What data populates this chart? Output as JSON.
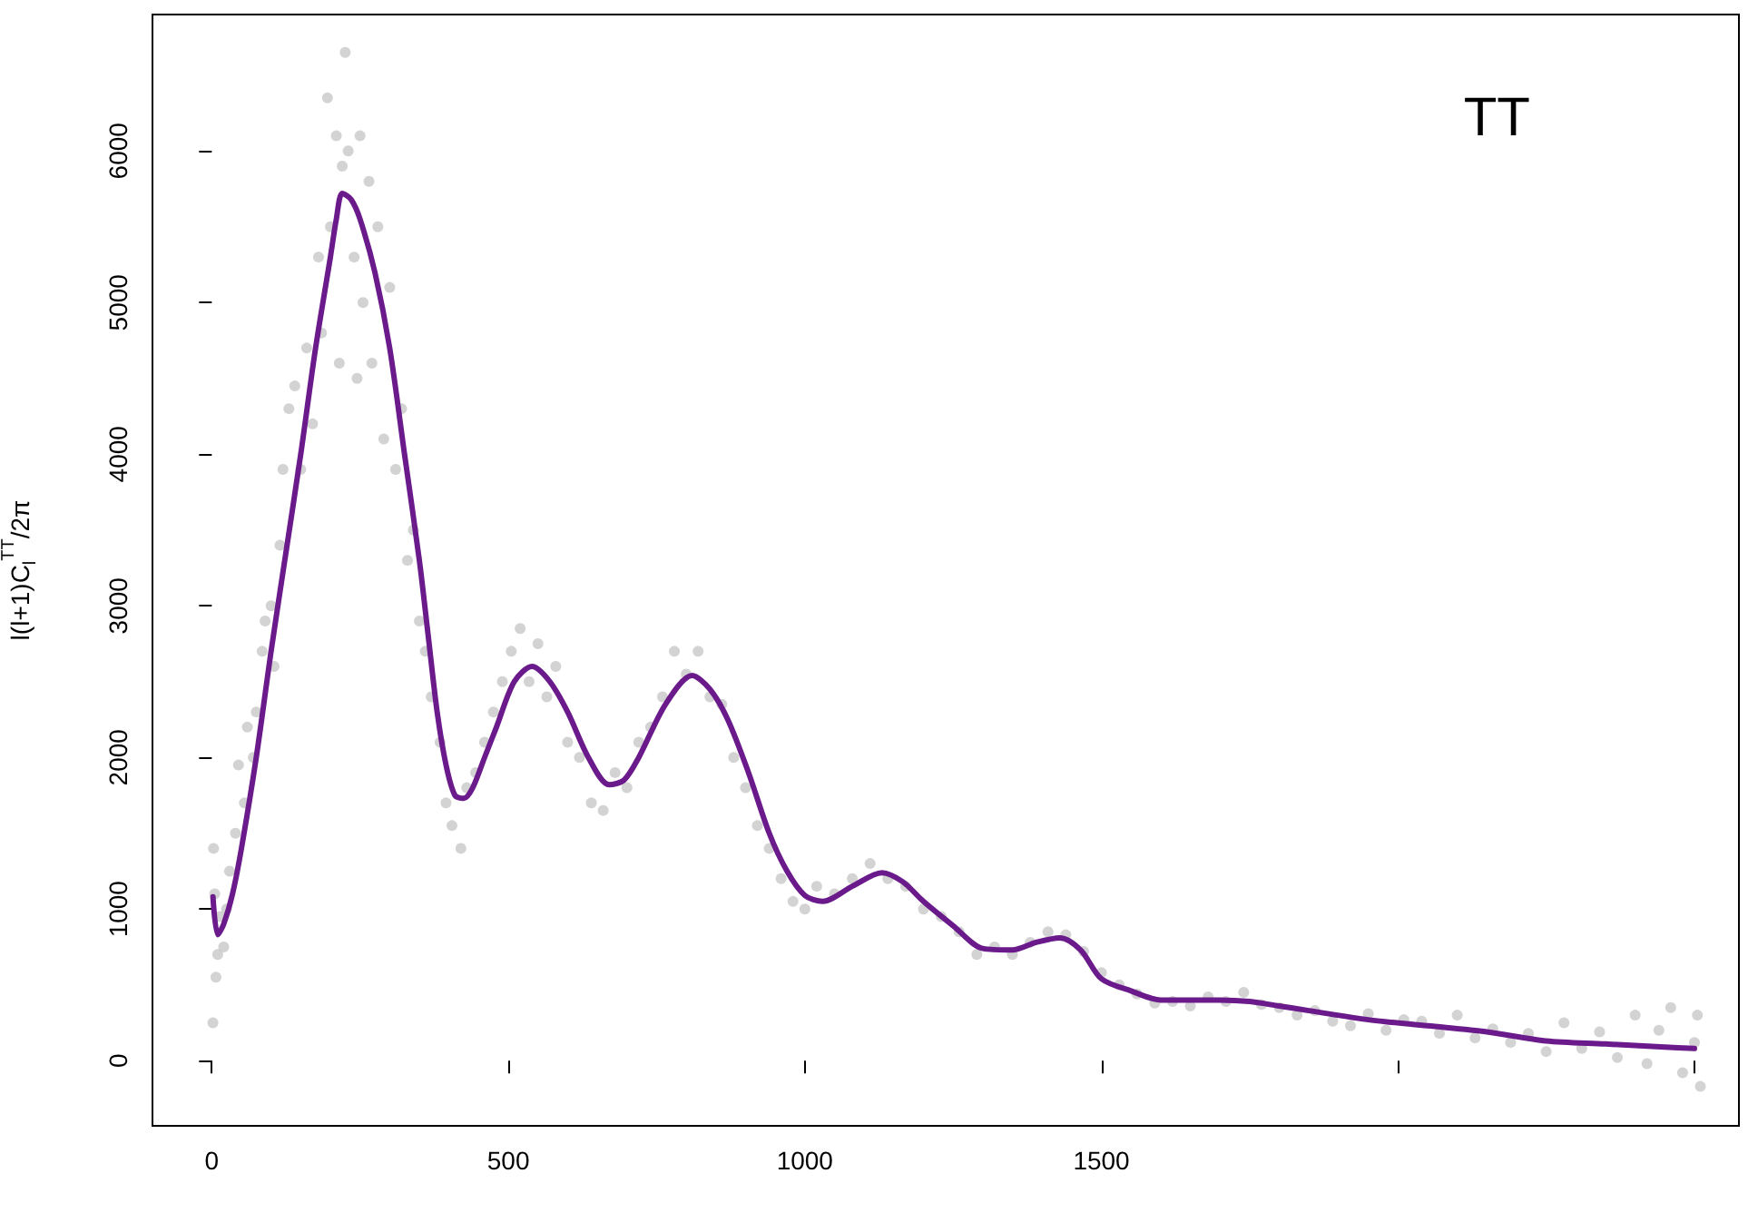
{
  "chart_data": {
    "type": "line",
    "ylabel": "l(l+1)C$_{l}$$^{TT}$/2π",
    "annotations": [
      "TT"
    ],
    "xlim": [
      -100,
      2575
    ],
    "ylim": [
      -430,
      6900
    ],
    "xticks": [
      0,
      500,
      1000,
      1500,
      {
        "value": 2000,
        "label": null
      },
      {
        "value": 2500,
        "label": null
      }
    ],
    "yticks": [
      0,
      1000,
      2000,
      3000,
      4000,
      5000,
      6000
    ],
    "series": [
      {
        "type": "scatter",
        "color": "#c8c8c8",
        "x": [
          2,
          3,
          5,
          7,
          10,
          14,
          20,
          25,
          30,
          40,
          45,
          55,
          60,
          70,
          75,
          85,
          90,
          100,
          105,
          115,
          120,
          130,
          140,
          150,
          160,
          170,
          180,
          185,
          195,
          200,
          210,
          215,
          220,
          225,
          230,
          240,
          245,
          250,
          255,
          265,
          270,
          280,
          290,
          300,
          310,
          320,
          330,
          340,
          350,
          360,
          370,
          385,
          395,
          405,
          420,
          430,
          445,
          460,
          475,
          490,
          505,
          520,
          535,
          550,
          565,
          580,
          600,
          620,
          640,
          660,
          680,
          700,
          720,
          740,
          760,
          780,
          800,
          820,
          840,
          860,
          880,
          900,
          920,
          940,
          960,
          980,
          1000,
          1020,
          1050,
          1080,
          1110,
          1140,
          1170,
          1200,
          1230,
          1260,
          1290,
          1320,
          1350,
          1380,
          1410,
          1440,
          1470,
          1500,
          1530,
          1560,
          1590,
          1620,
          1650,
          1680,
          1710,
          1740,
          1770,
          1800,
          1830,
          1860,
          1890,
          1920,
          1950,
          1980,
          2010,
          2040,
          2070,
          2100,
          2130,
          2160,
          2190,
          2220,
          2250,
          2280,
          2310,
          2340,
          2370,
          2400,
          2420,
          2440,
          2460,
          2480,
          2500,
          2505,
          2510
        ],
        "values": [
          250,
          1400,
          1100,
          550,
          700,
          950,
          750,
          1000,
          1250,
          1500,
          1950,
          1700,
          2200,
          2000,
          2300,
          2700,
          2900,
          3000,
          2600,
          3400,
          3900,
          4300,
          4450,
          3900,
          4700,
          4200,
          5300,
          4800,
          6350,
          5500,
          6100,
          4600,
          5900,
          6650,
          6000,
          5300,
          4500,
          6100,
          5000,
          5800,
          4600,
          5500,
          4100,
          5100,
          3900,
          4300,
          3300,
          3500,
          2900,
          2700,
          2400,
          2100,
          1700,
          1550,
          1400,
          1800,
          1900,
          2100,
          2300,
          2500,
          2700,
          2850,
          2500,
          2750,
          2400,
          2600,
          2100,
          2000,
          1700,
          1650,
          1900,
          1800,
          2100,
          2200,
          2400,
          2700,
          2550,
          2700,
          2400,
          2350,
          2000,
          1800,
          1550,
          1400,
          1200,
          1050,
          1000,
          1150,
          1100,
          1200,
          1300,
          1200,
          1150,
          1000,
          950,
          850,
          700,
          750,
          700,
          780,
          850,
          830,
          720,
          580,
          500,
          440,
          380,
          390,
          360,
          420,
          390,
          450,
          370,
          350,
          300,
          330,
          260,
          230,
          310,
          200,
          270,
          260,
          180,
          300,
          150,
          210,
          120,
          180,
          60,
          250,
          80,
          190,
          20,
          300,
          -20,
          200,
          350,
          -80,
          120,
          300,
          -170
        ]
      },
      {
        "color": "#6a1a8a",
        "x": [
          2,
          10,
          20,
          35,
          50,
          75,
          100,
          125,
          150,
          175,
          200,
          210,
          220,
          235,
          250,
          275,
          300,
          325,
          350,
          365,
          380,
          395,
          410,
          425,
          440,
          460,
          480,
          510,
          540,
          570,
          600,
          635,
          670,
          695,
          720,
          765,
          810,
          840,
          870,
          905,
          940,
          970,
          1000,
          1030,
          1080,
          1130,
          1165,
          1200,
          1250,
          1300,
          1350,
          1390,
          1430,
          1465,
          1500,
          1550,
          1600,
          1650,
          1700,
          1750,
          1800,
          1850,
          1950,
          2050,
          2150,
          2250,
          2350,
          2450,
          2500
        ],
        "values": [
          1080,
          830,
          900,
          1100,
          1400,
          2000,
          2700,
          3350,
          4000,
          4700,
          5300,
          5550,
          5720,
          5680,
          5550,
          5200,
          4700,
          4000,
          3300,
          2800,
          2300,
          1950,
          1750,
          1730,
          1800,
          2000,
          2200,
          2500,
          2600,
          2500,
          2300,
          2000,
          1820,
          1850,
          2000,
          2350,
          2540,
          2450,
          2250,
          1900,
          1500,
          1250,
          1090,
          1050,
          1150,
          1240,
          1180,
          1050,
          890,
          740,
          730,
          780,
          810,
          730,
          540,
          460,
          400,
          400,
          400,
          390,
          360,
          330,
          270,
          230,
          190,
          130,
          110,
          90,
          80
        ]
      }
    ]
  }
}
